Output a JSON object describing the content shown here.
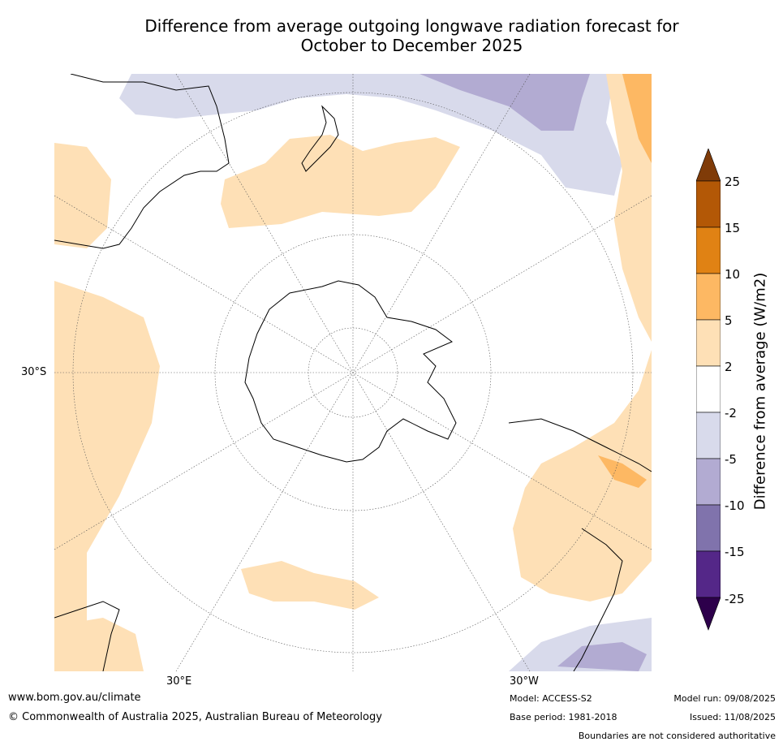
{
  "title_line1": "Difference from average outgoing longwave radiation forecast for",
  "title_line2": "October to December 2025",
  "map": {
    "lat_label": "30°S",
    "lon_labels": [
      "30°E",
      "30°W"
    ]
  },
  "legend": {
    "title": "Difference from average (W/m2)",
    "ticks": [
      "25",
      "15",
      "10",
      "5",
      "2",
      "-2",
      "-5",
      "-10",
      "-15",
      "-25"
    ],
    "colors": {
      "above_max": "#7f3b08",
      "c15_25": "#b35806",
      "c10_15": "#e08214",
      "c5_10": "#fdb863",
      "c2_5": "#fee0b6",
      "neutral": "#ffffff",
      "cm2_m5": "#d8daeb",
      "cm5_m10": "#b2abd2",
      "cm10_m15": "#8073ac",
      "cm15_m25": "#542788",
      "below_min": "#2d004b"
    }
  },
  "footer": {
    "website": "www.bom.gov.au/climate",
    "copyright": "© Commonwealth of Australia 2025, Australian Bureau of Meteorology",
    "model": "Model: ACCESS-S2",
    "base_period": "Base period: 1981-2018",
    "model_run": "Model run: 09/08/2025",
    "issued": "Issued: 11/08/2025",
    "disclaimer": "Boundaries are not considered authoritative"
  }
}
